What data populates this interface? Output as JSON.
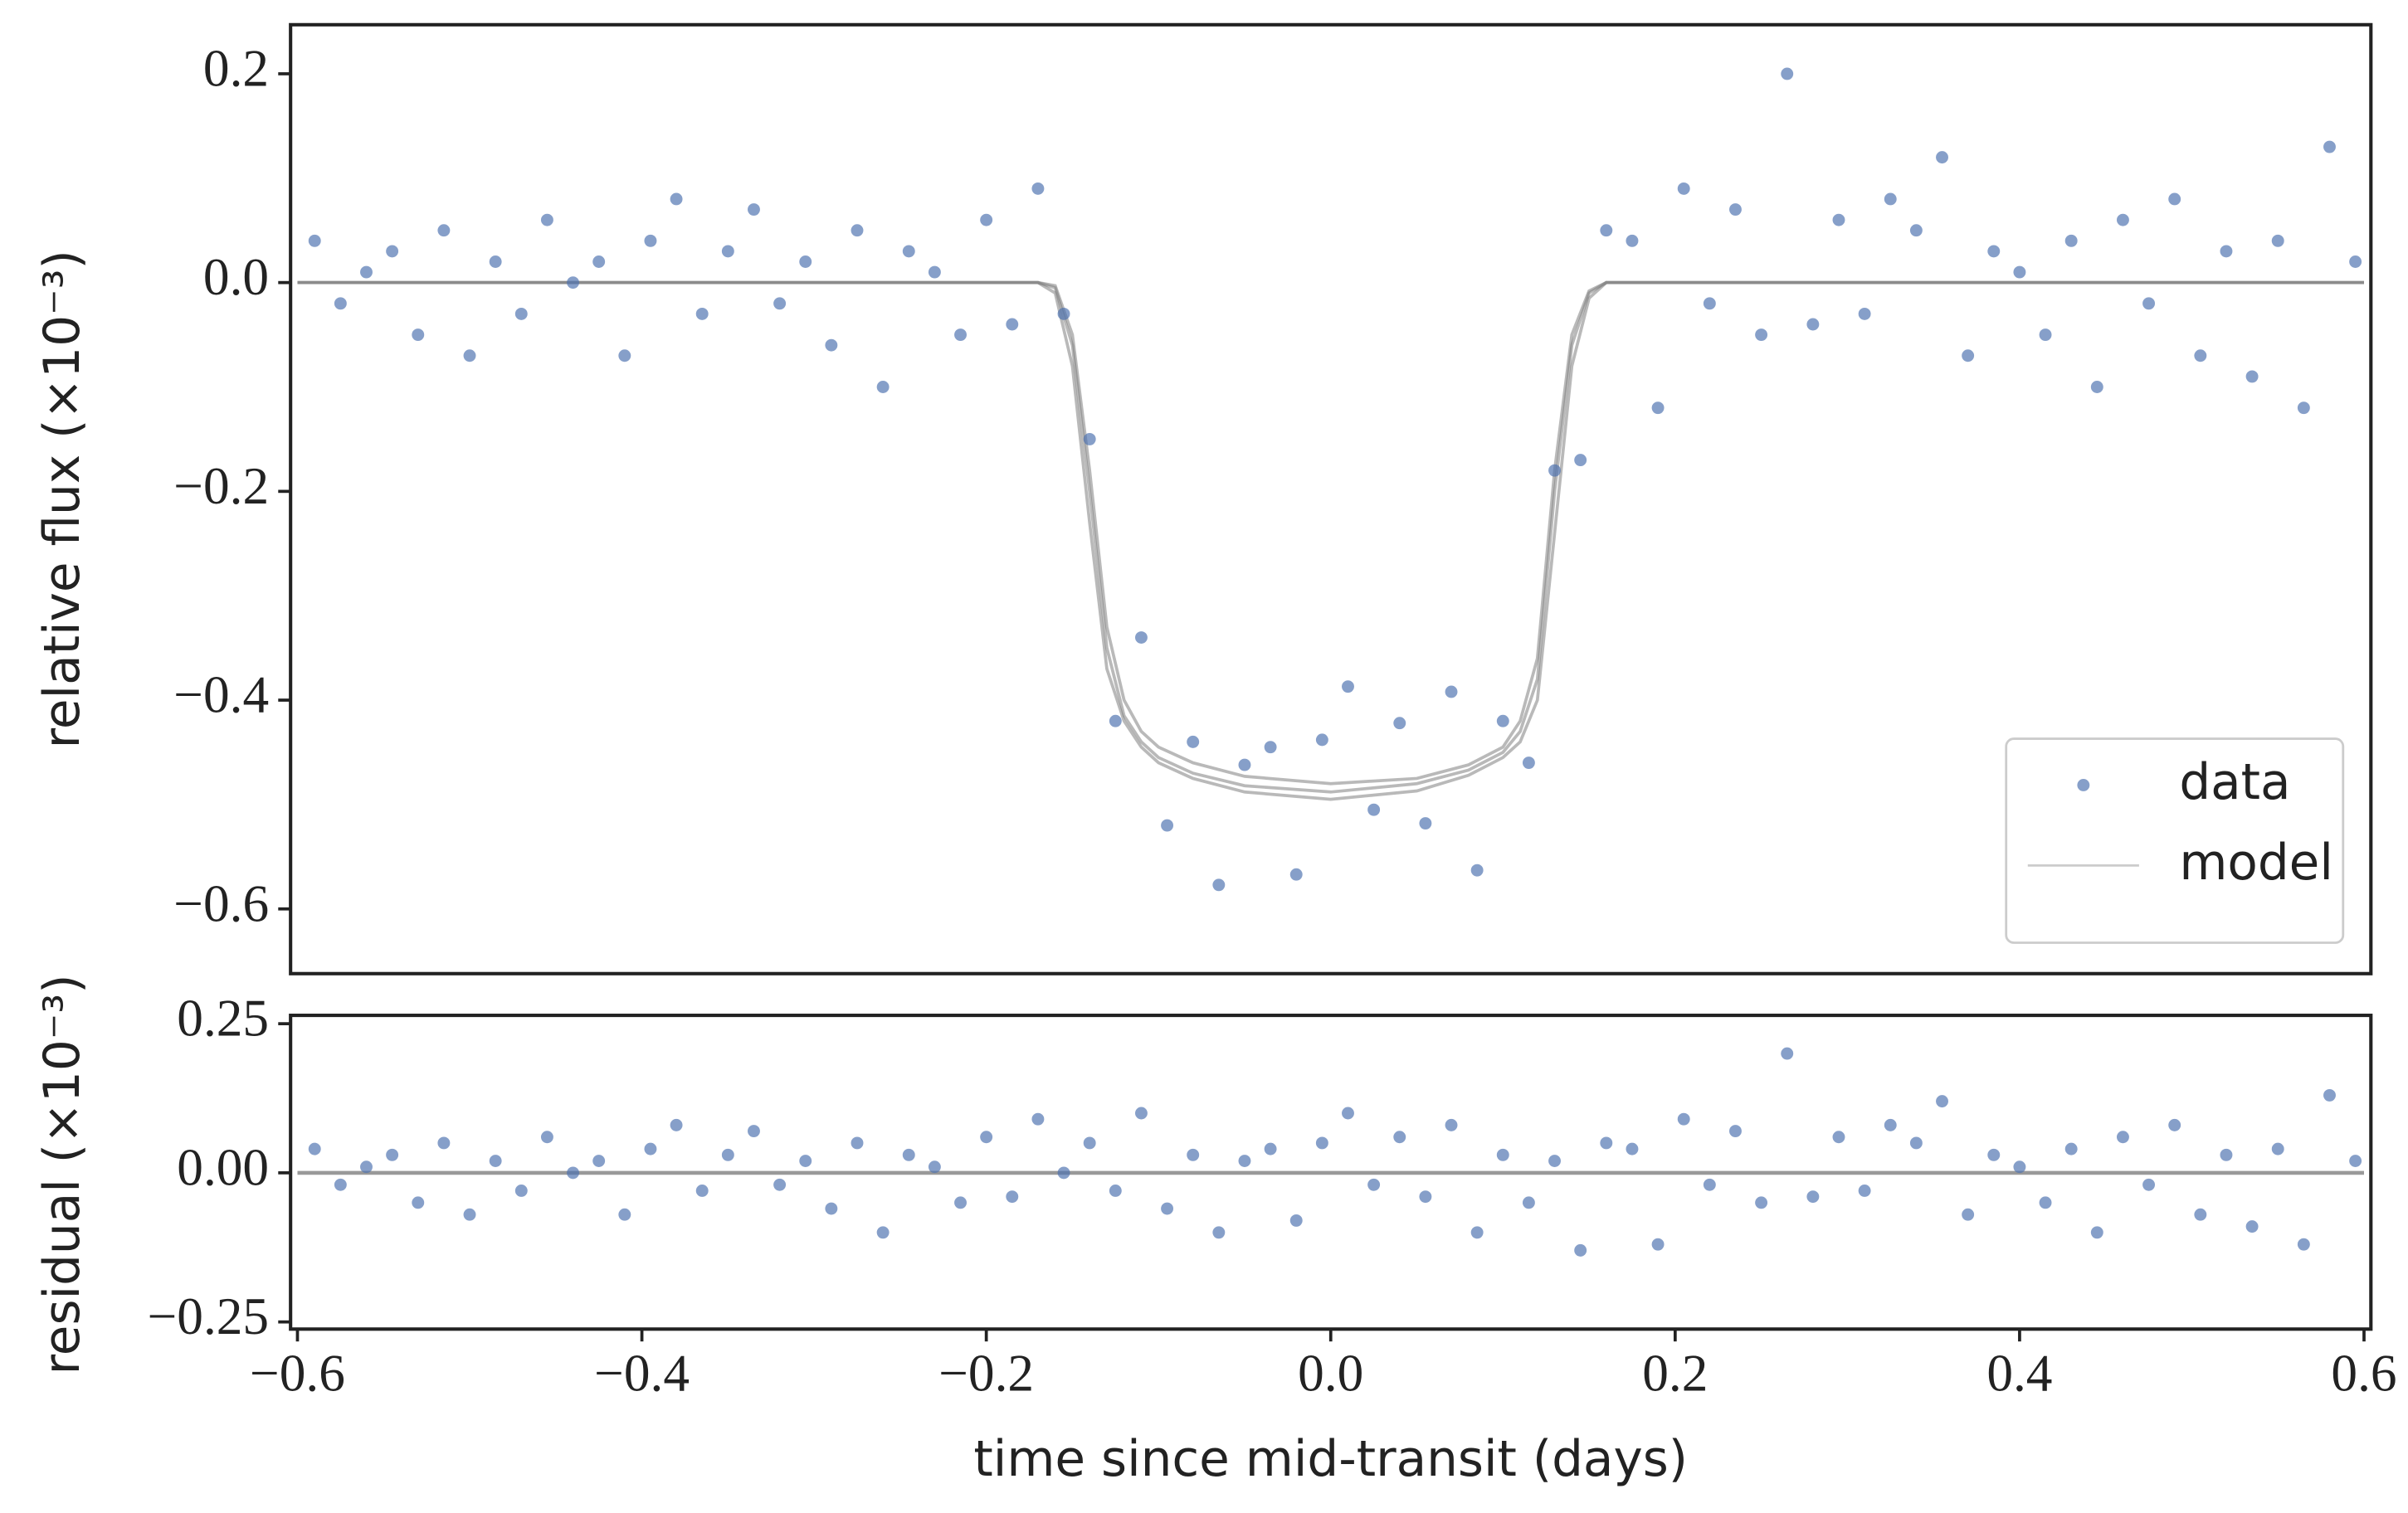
{
  "chart_data": [
    {
      "type": "scatter",
      "ylabel": "relative flux (×10⁻³)",
      "legend": "lower right",
      "xlim": [
        -0.604,
        0.604
      ],
      "ylim": [
        -0.662,
        0.247
      ],
      "yticks": [
        {
          "value": -0.6,
          "label": "−0.6"
        },
        {
          "value": -0.4,
          "label": "−0.4"
        },
        {
          "value": -0.2,
          "label": "−0.2"
        },
        {
          "value": 0,
          "label": "0.0"
        },
        0.2
      ],
      "series": [
        {
          "name": "data",
          "color": "#4c72b0",
          "x": [
            -0.59,
            -0.575,
            -0.56,
            -0.545,
            -0.53,
            -0.515,
            -0.5,
            -0.485,
            -0.47,
            -0.455,
            -0.44,
            -0.425,
            -0.41,
            -0.395,
            -0.38,
            -0.365,
            -0.35,
            -0.335,
            -0.32,
            -0.305,
            -0.29,
            -0.275,
            -0.26,
            -0.245,
            -0.23,
            -0.215,
            -0.2,
            -0.185,
            -0.17,
            -0.155,
            -0.14,
            -0.125,
            -0.11,
            -0.095,
            -0.08,
            -0.065,
            -0.05,
            -0.035,
            -0.02,
            -0.005,
            0.01,
            0.025,
            0.04,
            0.055,
            0.07,
            0.085,
            0.1,
            0.115,
            0.13,
            0.145,
            0.16,
            0.175,
            0.19,
            0.205,
            0.22,
            0.235,
            0.25,
            0.265,
            0.28,
            0.295,
            0.31,
            0.325,
            0.34,
            0.355,
            0.37,
            0.385,
            0.4,
            0.415,
            0.43,
            0.445,
            0.46,
            0.475,
            0.49,
            0.505,
            0.52,
            0.535,
            0.55,
            0.565,
            0.58,
            0.595
          ],
          "values": [
            0.04,
            -0.02,
            0.01,
            0.03,
            -0.05,
            0.05,
            -0.07,
            0.02,
            -0.03,
            0.06,
            0.0,
            0.02,
            -0.07,
            0.04,
            0.08,
            -0.03,
            0.03,
            0.07,
            -0.02,
            0.02,
            -0.06,
            0.05,
            -0.1,
            0.03,
            0.01,
            -0.05,
            0.06,
            -0.04,
            0.09,
            -0.03,
            -0.15,
            -0.42,
            -0.34,
            -0.52,
            -0.44,
            -0.577,
            -0.462,
            -0.445,
            -0.567,
            -0.438,
            -0.387,
            -0.505,
            -0.422,
            -0.518,
            -0.392,
            -0.563,
            -0.42,
            -0.46,
            -0.18,
            -0.17,
            0.05,
            0.04,
            -0.12,
            0.09,
            -0.02,
            0.07,
            -0.05,
            0.2,
            -0.04,
            0.06,
            -0.03,
            0.08,
            0.05,
            0.12,
            -0.07,
            0.03,
            0.01,
            -0.05,
            0.04,
            -0.1,
            0.06,
            -0.02,
            0.08,
            -0.07,
            0.03,
            -0.09,
            0.04,
            -0.12,
            0.13,
            0.02
          ]
        },
        {
          "name": "model",
          "color": "#808080",
          "x": [
            -0.6,
            -0.2,
            -0.17,
            -0.16,
            -0.15,
            -0.14,
            -0.13,
            -0.12,
            -0.11,
            -0.1,
            -0.08,
            -0.05,
            0,
            0.05,
            0.08,
            0.1,
            0.11,
            0.12,
            0.13,
            0.14,
            0.15,
            0.16,
            0.2,
            0.6
          ],
          "samples": [
            [
              0,
              0,
              0,
              -0.005,
              -0.06,
              -0.2,
              -0.35,
              -0.415,
              -0.44,
              -0.455,
              -0.47,
              -0.482,
              -0.488,
              -0.48,
              -0.467,
              -0.45,
              -0.43,
              -0.38,
              -0.2,
              -0.06,
              -0.01,
              0,
              0,
              0
            ],
            [
              0,
              0,
              0,
              -0.01,
              -0.08,
              -0.23,
              -0.37,
              -0.42,
              -0.445,
              -0.46,
              -0.475,
              -0.488,
              -0.495,
              -0.487,
              -0.472,
              -0.455,
              -0.44,
              -0.4,
              -0.24,
              -0.08,
              -0.015,
              0,
              0,
              0
            ],
            [
              0,
              0,
              0,
              -0.003,
              -0.05,
              -0.18,
              -0.33,
              -0.4,
              -0.43,
              -0.445,
              -0.46,
              -0.473,
              -0.48,
              -0.475,
              -0.462,
              -0.445,
              -0.42,
              -0.36,
              -0.18,
              -0.05,
              -0.008,
              0,
              0,
              0
            ]
          ]
        }
      ]
    },
    {
      "type": "scatter",
      "ylabel": "residual (×10⁻³)",
      "xlabel": "time since mid-transit (days)",
      "xlim": [
        -0.604,
        0.604
      ],
      "ylim": [
        -0.262,
        0.264
      ],
      "xticks": [
        {
          "value": -0.6,
          "label": "−0.6"
        },
        {
          "value": -0.4,
          "label": "−0.4"
        },
        {
          "value": -0.2,
          "label": "−0.2"
        },
        {
          "value": 0,
          "label": "0.0"
        },
        0.2,
        0.4,
        0.6
      ],
      "yticks": [
        {
          "value": -0.25,
          "label": "−0.25"
        },
        {
          "value": 0,
          "label": "0.00"
        },
        0.25
      ],
      "series": [
        {
          "color": "#4c72b0",
          "x": [
            -0.59,
            -0.575,
            -0.56,
            -0.545,
            -0.53,
            -0.515,
            -0.5,
            -0.485,
            -0.47,
            -0.455,
            -0.44,
            -0.425,
            -0.41,
            -0.395,
            -0.38,
            -0.365,
            -0.35,
            -0.335,
            -0.32,
            -0.305,
            -0.29,
            -0.275,
            -0.26,
            -0.245,
            -0.23,
            -0.215,
            -0.2,
            -0.185,
            -0.17,
            -0.155,
            -0.14,
            -0.125,
            -0.11,
            -0.095,
            -0.08,
            -0.065,
            -0.05,
            -0.035,
            -0.02,
            -0.005,
            0.01,
            0.025,
            0.04,
            0.055,
            0.07,
            0.085,
            0.1,
            0.115,
            0.13,
            0.145,
            0.16,
            0.175,
            0.19,
            0.205,
            0.22,
            0.235,
            0.25,
            0.265,
            0.28,
            0.295,
            0.31,
            0.325,
            0.34,
            0.355,
            0.37,
            0.385,
            0.4,
            0.415,
            0.43,
            0.445,
            0.46,
            0.475,
            0.49,
            0.505,
            0.52,
            0.535,
            0.55,
            0.565,
            0.58,
            0.595
          ],
          "values": [
            0.04,
            -0.02,
            0.01,
            0.03,
            -0.05,
            0.05,
            -0.07,
            0.02,
            -0.03,
            0.06,
            0.0,
            0.02,
            -0.07,
            0.04,
            0.08,
            -0.03,
            0.03,
            0.07,
            -0.02,
            0.02,
            -0.06,
            0.05,
            -0.1,
            0.03,
            0.01,
            -0.05,
            0.06,
            -0.04,
            0.09,
            0.0,
            0.05,
            -0.03,
            0.1,
            -0.06,
            0.03,
            -0.1,
            0.02,
            0.04,
            -0.08,
            0.05,
            0.1,
            -0.02,
            0.06,
            -0.04,
            0.08,
            -0.1,
            0.03,
            -0.05,
            0.02,
            -0.13,
            0.05,
            0.04,
            -0.12,
            0.09,
            -0.02,
            0.07,
            -0.05,
            0.2,
            -0.04,
            0.06,
            -0.03,
            0.08,
            0.05,
            0.12,
            -0.07,
            0.03,
            0.01,
            -0.05,
            0.04,
            -0.1,
            0.06,
            -0.02,
            0.08,
            -0.07,
            0.03,
            -0.09,
            0.04,
            -0.12,
            0.13,
            0.02
          ]
        },
        {
          "color": "#808080",
          "x": [
            -0.6,
            0.6
          ],
          "values": [
            0,
            0
          ]
        }
      ]
    }
  ]
}
